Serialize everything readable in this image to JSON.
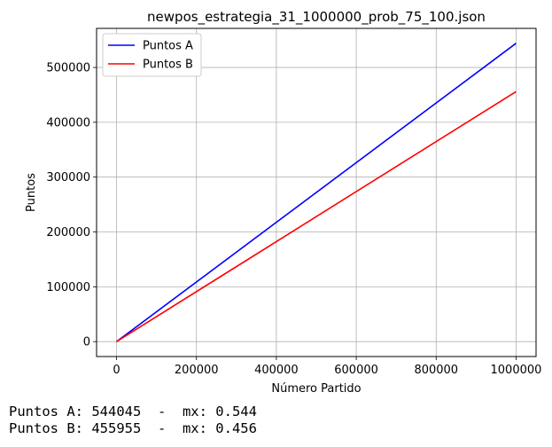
{
  "chart_data": {
    "type": "line",
    "title": "newpos_estrategia_31_1000000_prob_75_100.json",
    "xlabel": "Número Partido",
    "ylabel": "Puntos",
    "xlim": [
      -50000,
      1050000
    ],
    "ylim": [
      -27202,
      571247
    ],
    "xticks": [
      0,
      200000,
      400000,
      600000,
      800000,
      1000000
    ],
    "xtick_labels": [
      "0",
      "200000",
      "400000",
      "600000",
      "800000",
      "1000000"
    ],
    "yticks": [
      0,
      100000,
      200000,
      300000,
      400000,
      500000
    ],
    "ytick_labels": [
      "0",
      "100000",
      "200000",
      "300000",
      "400000",
      "500000"
    ],
    "grid": true,
    "legend_position": "upper-left",
    "series": [
      {
        "name": "Puntos A",
        "color": "#0000ff",
        "x": [
          0,
          1000000
        ],
        "y": [
          0,
          544045
        ]
      },
      {
        "name": "Puntos B",
        "color": "#ff0000",
        "x": [
          0,
          1000000
        ],
        "y": [
          0,
          455955
        ]
      }
    ]
  },
  "stats": {
    "line_a": "Puntos A: 544045  -  mx: 0.544",
    "line_b": "Puntos B: 455955  -  mx: 0.456"
  }
}
